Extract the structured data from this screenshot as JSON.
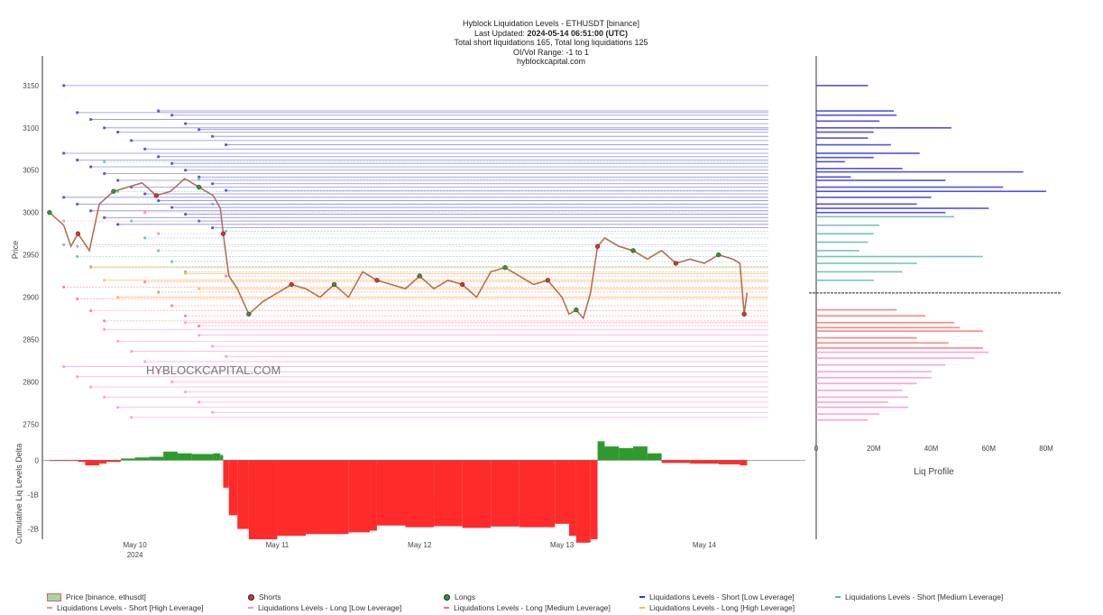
{
  "header": {
    "title": "Hyblock Liquidation Levels - ETHUSDT [binance]",
    "updated_prefix": "Last Updated: ",
    "updated_value": "2024-05-14 06:51:00 (UTC)",
    "totals": "Total short liquidations 165, Total long liquidations 125",
    "range": "OI/Vol Range: -1 to 1",
    "site": "hyblockcapital.com"
  },
  "watermark": "HYBLOCKCAPITAL.COM",
  "colors": {
    "price_up": "#3a9a3a",
    "price_down": "#e0645a",
    "short_low": "#3333dd",
    "short_medium": "#5cb8b2",
    "short_high": "#f08aa0",
    "long_low": "#ff8fd6",
    "long_medium": "#ff6f6f",
    "long_high": "#ffb347",
    "delta_pos": "#2e9a2e",
    "delta_neg": "#ff2b2b"
  },
  "chart_data": [
    {
      "type": "line",
      "ylabel": "Price",
      "ylim": [
        2727,
        3185
      ],
      "yticks": [
        "2750",
        "2800",
        "2850",
        "2900",
        "2950",
        "3000",
        "3050",
        "3100",
        "3150"
      ],
      "xticks": [
        "May 10",
        "May 11",
        "May 12",
        "May 13",
        "May 14"
      ],
      "x_year_label": "2024",
      "x_range_days": [
        9.35,
        14.45
      ],
      "price": {
        "x_days": [
          9.4,
          9.5,
          9.55,
          9.6,
          9.68,
          9.75,
          9.85,
          9.95,
          10.05,
          10.15,
          10.25,
          10.35,
          10.45,
          10.55,
          10.6,
          10.62,
          10.66,
          10.72,
          10.8,
          10.9,
          11.0,
          11.1,
          11.2,
          11.3,
          11.4,
          11.5,
          11.6,
          11.7,
          11.8,
          11.9,
          12.0,
          12.1,
          12.2,
          12.3,
          12.4,
          12.5,
          12.6,
          12.7,
          12.8,
          12.9,
          13.0,
          13.05,
          13.1,
          13.15,
          13.2,
          13.25,
          13.3,
          13.4,
          13.5,
          13.6,
          13.7,
          13.8,
          13.9,
          14.0,
          14.1,
          14.2,
          14.25,
          14.28,
          14.3
        ],
        "values": [
          3000,
          2985,
          2960,
          2975,
          2955,
          3010,
          3025,
          3030,
          3035,
          3020,
          3025,
          3040,
          3030,
          3020,
          3005,
          2975,
          2925,
          2910,
          2880,
          2895,
          2905,
          2915,
          2910,
          2900,
          2915,
          2900,
          2930,
          2920,
          2915,
          2910,
          2925,
          2910,
          2920,
          2915,
          2900,
          2930,
          2935,
          2925,
          2915,
          2920,
          2900,
          2880,
          2885,
          2875,
          2905,
          2960,
          2970,
          2960,
          2955,
          2945,
          2955,
          2940,
          2945,
          2940,
          2950,
          2945,
          2940,
          2880,
          2905
        ]
      },
      "liquidation_levels": {
        "short_low": {
          "prices": [
            3150,
            3120,
            3118,
            3115,
            3110,
            3105,
            3100,
            3098,
            3095,
            3090,
            3085,
            3080,
            3075,
            3070,
            3066,
            3062,
            3058,
            3054,
            3050,
            3046,
            3042,
            3038,
            3034,
            3030,
            3026,
            3022,
            3018,
            3014,
            3010,
            3006,
            3002,
            2998,
            2994,
            2990,
            2986,
            2982
          ]
        },
        "short_medium": {
          "prices": [
            3060,
            3040,
            3025,
            3010,
            2990,
            2978,
            2970,
            2962,
            2955,
            2948,
            2942,
            2936,
            2930
          ]
        },
        "short_high": {
          "prices": [
            3000,
            2990,
            2975,
            2960
          ]
        },
        "long_low": {
          "prices": [
            2870,
            2862,
            2855,
            2848,
            2842,
            2836,
            2830,
            2824,
            2818,
            2812,
            2806,
            2800,
            2794,
            2788,
            2782,
            2776,
            2770,
            2764,
            2758
          ]
        },
        "long_medium": {
          "prices": [
            2925,
            2918,
            2912,
            2906,
            2898,
            2890,
            2884,
            2878,
            2872,
            2866
          ]
        },
        "long_high": {
          "prices": [
            2935,
            2928,
            2920,
            2910,
            2900
          ]
        }
      }
    },
    {
      "type": "area",
      "ylabel": "Cumulative Liq Levels Delta",
      "ylim": [
        -2.3,
        0.35
      ],
      "ytick_labels": [
        "0",
        "-1B",
        "-2B"
      ],
      "yticks": [
        0,
        -1,
        -2
      ],
      "x_days": [
        9.4,
        9.6,
        9.65,
        9.75,
        9.8,
        9.9,
        10.0,
        10.1,
        10.2,
        10.3,
        10.4,
        10.55,
        10.6,
        10.62,
        10.66,
        10.72,
        10.8,
        11.0,
        11.2,
        11.5,
        11.65,
        11.7,
        11.9,
        12.1,
        12.3,
        12.5,
        12.7,
        12.95,
        13.05,
        13.1,
        13.2,
        13.25,
        13.3,
        13.4,
        13.5,
        13.6,
        13.7,
        13.9,
        14.1,
        14.25,
        14.3
      ],
      "values_billions": [
        -0.02,
        -0.05,
        -0.15,
        -0.1,
        -0.05,
        0.05,
        0.08,
        0.1,
        0.25,
        0.2,
        0.18,
        0.2,
        0.15,
        -0.8,
        -1.6,
        -2.0,
        -2.3,
        -2.2,
        -2.15,
        -2.1,
        -2.05,
        -1.9,
        -1.95,
        -1.92,
        -1.97,
        -1.93,
        -1.95,
        -1.85,
        -2.2,
        -2.4,
        -2.3,
        0.55,
        0.4,
        0.35,
        0.4,
        0.2,
        -0.08,
        -0.1,
        -0.12,
        -0.15,
        -1.2
      ]
    },
    {
      "type": "bar",
      "xlabel": "Liq Profile",
      "xlim": [
        0,
        85
      ],
      "xtick_labels": [
        "0",
        "20M",
        "40M",
        "60M",
        "80M"
      ],
      "xticks": [
        0,
        20,
        40,
        60,
        80
      ],
      "current_price": 2905,
      "short_bars": {
        "prices": [
          3150,
          3120,
          3115,
          3108,
          3100,
          3095,
          3088,
          3080,
          3070,
          3065,
          3060,
          3052,
          3048,
          3042,
          3038,
          3030,
          3025,
          3018,
          3010,
          3005,
          3000,
          2995,
          2985,
          2975,
          2965,
          2955,
          2948,
          2940,
          2930,
          2920
        ],
        "values_m": [
          18,
          27,
          28,
          22,
          47,
          20,
          18,
          26,
          36,
          20,
          10,
          30,
          72,
          12,
          45,
          65,
          80,
          40,
          35,
          60,
          45,
          48,
          22,
          20,
          18,
          15,
          58,
          35,
          30,
          20
        ]
      },
      "long_bars": {
        "prices": [
          2885,
          2878,
          2870,
          2864,
          2860,
          2852,
          2846,
          2840,
          2835,
          2828,
          2820,
          2812,
          2805,
          2798,
          2790,
          2782,
          2776,
          2770,
          2762,
          2755
        ],
        "values_m": [
          28,
          38,
          48,
          50,
          58,
          35,
          46,
          58,
          60,
          55,
          45,
          40,
          40,
          35,
          30,
          32,
          25,
          32,
          22,
          18
        ]
      }
    }
  ],
  "legend": [
    {
      "label": "Price [binance, ethusdt]",
      "color": "#e0645a",
      "kind": "price"
    },
    {
      "label": "Shorts",
      "color": "#e03030",
      "kind": "dot"
    },
    {
      "label": "Longs",
      "color": "#2e9a2e",
      "kind": "dot"
    },
    {
      "label": "Liquidations Levels - Short [Low Leverage]",
      "color": "#3333dd",
      "kind": "line"
    },
    {
      "label": "Liquidations Levels - Short [Medium Leverage]",
      "color": "#5cb8b2",
      "kind": "line"
    },
    {
      "label": "Liquidations Levels - Short [High Leverage]",
      "color": "#f08aa0",
      "kind": "line"
    },
    {
      "label": "Liquidations Levels - Long [Low Leverage]",
      "color": "#ff8fd6",
      "kind": "line"
    },
    {
      "label": "Liquidations Levels - Long [Medium Leverage]",
      "color": "#ff6f6f",
      "kind": "line"
    },
    {
      "label": "Liquidations Levels - Long [High Leverage]",
      "color": "#ffb347",
      "kind": "line"
    }
  ]
}
